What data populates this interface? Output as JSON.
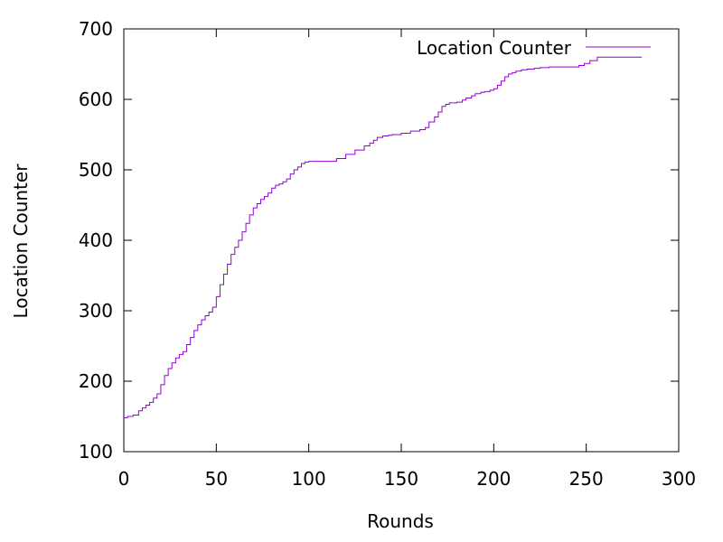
{
  "colors": {
    "series": "#9400d3",
    "axis": "#000000",
    "background": "#ffffff"
  },
  "chart_data": {
    "type": "line",
    "title": "",
    "xlabel": "Rounds",
    "ylabel": "Location Counter",
    "xlim": [
      0,
      300
    ],
    "ylim": [
      100,
      700
    ],
    "xticks": [
      "0",
      "50",
      "100",
      "150",
      "200",
      "250",
      "300"
    ],
    "yticks": [
      "100",
      "200",
      "300",
      "400",
      "500",
      "600",
      "700"
    ],
    "grid": false,
    "legend_position": "top-right",
    "series": [
      {
        "name": "Location Counter",
        "color": "#9400d3",
        "step": true,
        "x": [
          0,
          2,
          5,
          8,
          10,
          12,
          14,
          16,
          18,
          20,
          22,
          24,
          26,
          28,
          30,
          32,
          34,
          36,
          38,
          40,
          42,
          44,
          46,
          48,
          50,
          52,
          54,
          56,
          58,
          60,
          62,
          64,
          66,
          68,
          70,
          72,
          74,
          76,
          78,
          80,
          82,
          84,
          86,
          88,
          90,
          92,
          94,
          96,
          98,
          100,
          102,
          104,
          106,
          108,
          110,
          115,
          120,
          125,
          130,
          133,
          135,
          137,
          140,
          143,
          145,
          150,
          155,
          160,
          163,
          165,
          168,
          170,
          172,
          174,
          176,
          178,
          180,
          183,
          185,
          188,
          190,
          193,
          195,
          198,
          200,
          202,
          204,
          206,
          208,
          210,
          212,
          215,
          218,
          220,
          222,
          225,
          230,
          235,
          240,
          243,
          246,
          249,
          252,
          256,
          260,
          265,
          270,
          280
        ],
        "y": [
          148,
          150,
          152,
          158,
          162,
          166,
          170,
          176,
          182,
          195,
          208,
          218,
          226,
          233,
          238,
          242,
          252,
          262,
          272,
          280,
          287,
          293,
          298,
          305,
          320,
          337,
          352,
          366,
          380,
          390,
          400,
          412,
          424,
          436,
          446,
          452,
          458,
          462,
          467,
          474,
          478,
          480,
          483,
          487,
          494,
          500,
          504,
          509,
          511,
          512,
          512,
          512,
          512,
          512,
          512,
          516,
          522,
          528,
          534,
          538,
          542,
          546,
          548,
          549,
          550,
          552,
          555,
          557,
          560,
          568,
          575,
          582,
          590,
          593,
          595,
          595,
          596,
          599,
          602,
          605,
          608,
          610,
          611,
          613,
          615,
          620,
          626,
          632,
          636,
          638,
          640,
          642,
          643,
          643,
          644,
          645,
          646,
          646,
          646,
          646,
          648,
          651,
          655,
          660,
          660,
          660,
          660,
          660
        ]
      }
    ]
  }
}
